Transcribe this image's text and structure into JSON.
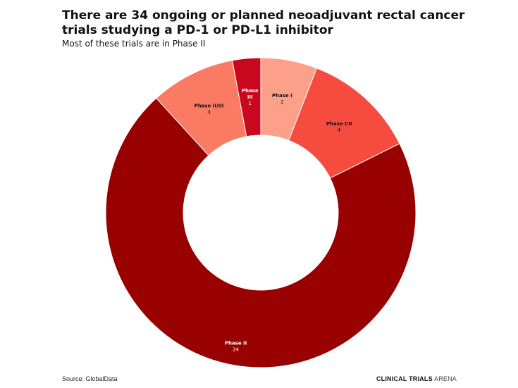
{
  "header": {
    "title": "There are 34 ongoing or planned neoadjuvant rectal cancer trials studying a PD-1 or PD-L1 inhibitor",
    "subtitle": "Most of these trials are in Phase II"
  },
  "footer": {
    "source": "Source: GlobalData",
    "brand_bold": "CLINICAL TRIALS",
    "brand_light": " ARENA"
  },
  "chart_data": {
    "type": "pie",
    "variant": "donut",
    "title": "There are 34 ongoing or planned neoadjuvant rectal cancer trials studying a PD-1 or PD-L1 inhibitor",
    "subtitle": "Most of these trials are in Phase II",
    "total": 34,
    "slices": [
      {
        "label": "Phase I",
        "label_lines": [
          "Phase I"
        ],
        "value": 2,
        "color": "#fda08a",
        "label_color": "#111111"
      },
      {
        "label": "Phase I/II",
        "label_lines": [
          "Phase I/II"
        ],
        "value": 4,
        "color": "#f54c3f",
        "label_color": "#111111"
      },
      {
        "label": "Phase II",
        "label_lines": [
          "Phase II"
        ],
        "value": 24,
        "color": "#990000",
        "label_color": "#ffffff"
      },
      {
        "label": "Phase II/III",
        "label_lines": [
          "Phase II/III"
        ],
        "value": 3,
        "color": "#fa7a64",
        "label_color": "#111111"
      },
      {
        "label": "Phase III",
        "label_lines": [
          "Phase",
          "III"
        ],
        "value": 1,
        "color": "#c8081c",
        "label_color": "#ffffff"
      }
    ]
  }
}
